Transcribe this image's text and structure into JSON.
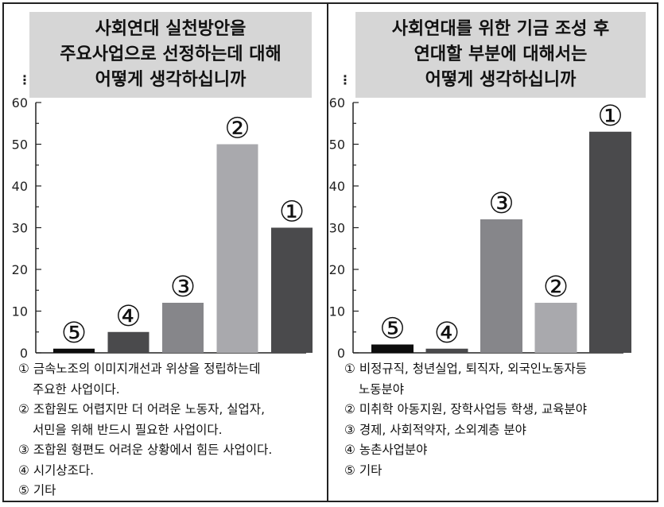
{
  "panels": [
    {
      "title_lines": [
        "사회연대 실천방안을",
        "주요사업으로 선정하는데 대해",
        "어떻게 생각하십니까"
      ],
      "colon": "⋮",
      "legend": [
        {
          "mark": "①",
          "lines": [
            "금속노조의 이미지개선과 위상을 정립하는데",
            "주요한 사업이다."
          ]
        },
        {
          "mark": "②",
          "lines": [
            "조합원도 어렵지만 더 어려운 노동자, 실업자,",
            "서민을 위해 반드시 필요한 사업이다."
          ]
        },
        {
          "mark": "③",
          "lines": [
            "조합원 형편도 어려운 상황에서 힘든 사업이다."
          ]
        },
        {
          "mark": "④",
          "lines": [
            "시기상조다."
          ]
        },
        {
          "mark": "⑤",
          "lines": [
            "기타"
          ]
        }
      ]
    },
    {
      "title_lines": [
        "사회연대를 위한 기금 조성 후",
        "연대할 부분에 대해서는",
        "어떻게 생각하십니까"
      ],
      "colon": "⋮",
      "legend": [
        {
          "mark": "①",
          "lines": [
            "비정규직, 청년실업, 퇴직자, 외국인노동자등",
            "노동분야"
          ]
        },
        {
          "mark": "②",
          "lines": [
            "미취학 아동지원, 장학사업등 학생, 교육분야"
          ]
        },
        {
          "mark": "③",
          "lines": [
            "경제, 사회적약자, 소외계층 분야"
          ]
        },
        {
          "mark": "④",
          "lines": [
            "농촌사업분야"
          ]
        },
        {
          "mark": "⑤",
          "lines": [
            "기타"
          ]
        }
      ]
    }
  ],
  "chart_data": [
    {
      "type": "bar",
      "categories": [
        "⑤",
        "④",
        "③",
        "②",
        "①"
      ],
      "values": [
        1,
        5,
        12,
        50,
        30
      ],
      "colors": [
        "#0d0d0d",
        "#4a4a4c",
        "#86868a",
        "#a9a9ad",
        "#4a4a4c"
      ],
      "yticks": [
        0,
        10,
        20,
        30,
        40,
        50,
        60
      ],
      "ylim": [
        0,
        60
      ],
      "grid": false,
      "title": "",
      "xlabel": "",
      "ylabel": ""
    },
    {
      "type": "bar",
      "categories": [
        "⑤",
        "④",
        "③",
        "②",
        "①"
      ],
      "values": [
        2,
        1,
        32,
        12,
        53
      ],
      "colors": [
        "#0d0d0d",
        "#4a4a4c",
        "#86868a",
        "#a9a9ad",
        "#4a4a4c"
      ],
      "yticks": [
        0,
        10,
        20,
        30,
        40,
        50,
        60
      ],
      "ylim": [
        0,
        60
      ],
      "grid": false,
      "title": "",
      "xlabel": "",
      "ylabel": ""
    }
  ]
}
